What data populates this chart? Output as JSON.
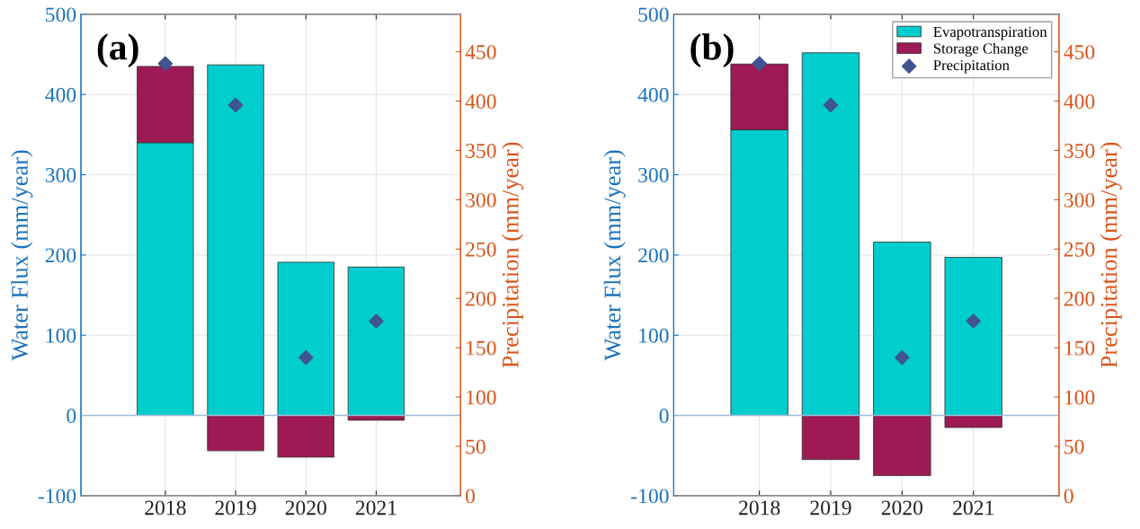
{
  "chart_data": [
    {
      "type": "bar",
      "stacked": true,
      "annotations": [
        "(a)"
      ],
      "x": [
        2018,
        2019,
        2020,
        2021
      ],
      "xlim": [
        2016.8,
        2022.2
      ],
      "xticks": [
        2018,
        2019,
        2020,
        2021
      ],
      "ylim": [
        -100,
        500
      ],
      "yticks": [
        -100,
        0,
        100,
        200,
        300,
        400,
        500
      ],
      "ylabel": "Water Flux (mm/year)",
      "y2lim": [
        0,
        488
      ],
      "y2ticks": [
        0,
        50,
        100,
        150,
        200,
        250,
        300,
        350,
        400,
        450
      ],
      "y2label": "Precipitation (mm/year)",
      "grid": true,
      "ref_lines": [
        {
          "axis": "y",
          "value": 0,
          "color": "#9bbcdc"
        }
      ],
      "series": [
        {
          "color": "#00cdcd",
          "values": [
            340,
            437,
            191,
            185
          ]
        },
        {
          "color": "#9e1a55",
          "values": [
            95,
            -44,
            -52,
            -6
          ]
        },
        {
          "type": "scatter",
          "axis": "y2",
          "marker": "diamond",
          "color": "#3f5591",
          "values": [
            438,
            396,
            140,
            177
          ]
        }
      ]
    },
    {
      "type": "bar",
      "stacked": true,
      "annotations": [
        "(b)"
      ],
      "x": [
        2018,
        2019,
        2020,
        2021
      ],
      "xlim": [
        2016.8,
        2022.2
      ],
      "xticks": [
        2018,
        2019,
        2020,
        2021
      ],
      "ylim": [
        -100,
        500
      ],
      "yticks": [
        -100,
        0,
        100,
        200,
        300,
        400,
        500
      ],
      "ylabel": "Water Flux (mm/year)",
      "y2lim": [
        0,
        488
      ],
      "y2ticks": [
        0,
        50,
        100,
        150,
        200,
        250,
        300,
        350,
        400,
        450
      ],
      "y2label": "Precipitation (mm/year)",
      "grid": true,
      "legend": "top right",
      "ref_lines": [
        {
          "axis": "y",
          "value": 0,
          "color": "#9bbcdc"
        }
      ],
      "series": [
        {
          "name": "Evapotranspiration",
          "color": "#00cdcd",
          "values": [
            356,
            452,
            216,
            197
          ]
        },
        {
          "name": "Storage Change",
          "color": "#9e1a55",
          "values": [
            82,
            -55,
            -75,
            -15
          ]
        },
        {
          "name": "Precipitation",
          "type": "scatter",
          "axis": "y2",
          "marker": "diamond",
          "color": "#3f5591",
          "values": [
            438,
            396,
            140,
            177
          ]
        }
      ]
    }
  ]
}
